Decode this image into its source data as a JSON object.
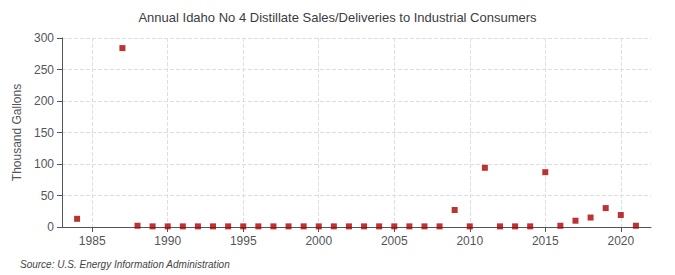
{
  "chart_data": {
    "type": "scatter",
    "title": "Annual Idaho No 4 Distillate Sales/Deliveries to Industrial Consumers",
    "ylabel": "Thousand Gallons",
    "annotations": [
      "Source: U.S. Energy Information Administration"
    ],
    "x": [
      1984,
      1987,
      1988,
      1989,
      1990,
      1991,
      1992,
      1993,
      1994,
      1995,
      1996,
      1997,
      1998,
      1999,
      2000,
      2001,
      2002,
      2003,
      2004,
      2005,
      2006,
      2007,
      2008,
      2009,
      2010,
      2011,
      2012,
      2013,
      2014,
      2015,
      2016,
      2017,
      2018,
      2019,
      2020,
      2021
    ],
    "values": [
      13,
      284,
      2,
      1,
      1,
      1,
      1,
      1,
      1,
      1,
      1,
      1,
      1,
      1,
      1,
      1,
      1,
      1,
      1,
      1,
      1,
      1,
      1,
      27,
      1,
      94,
      1,
      1,
      1,
      87,
      2,
      10,
      15,
      30,
      19,
      2
    ],
    "color": "#aa0000",
    "marker": "square",
    "xlim": [
      1983,
      2022
    ],
    "xticks": [
      1985,
      1990,
      1995,
      2000,
      2005,
      2010,
      2015,
      2020
    ],
    "ylim": [
      0,
      300
    ],
    "yticks": [
      0,
      50,
      100,
      150,
      200,
      250,
      300
    ],
    "grid": true
  }
}
